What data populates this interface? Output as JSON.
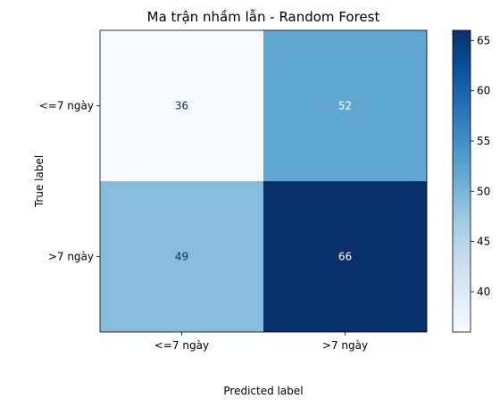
{
  "chart_data": {
    "type": "heatmap",
    "title": "Ma trận nhầm lẫn - Random Forest",
    "xlabel": "Predicted label",
    "ylabel": "True label",
    "x_categories": [
      "<=7 ngày",
      ">7 ngày"
    ],
    "y_categories": [
      "<=7 ngày",
      ">7 ngày"
    ],
    "values": [
      [
        36,
        52
      ],
      [
        49,
        66
      ]
    ],
    "colormap": "Blues",
    "colorbar": {
      "range": [
        36,
        66
      ],
      "ticks": [
        40,
        45,
        50,
        55,
        60,
        65
      ]
    },
    "grid": false
  }
}
